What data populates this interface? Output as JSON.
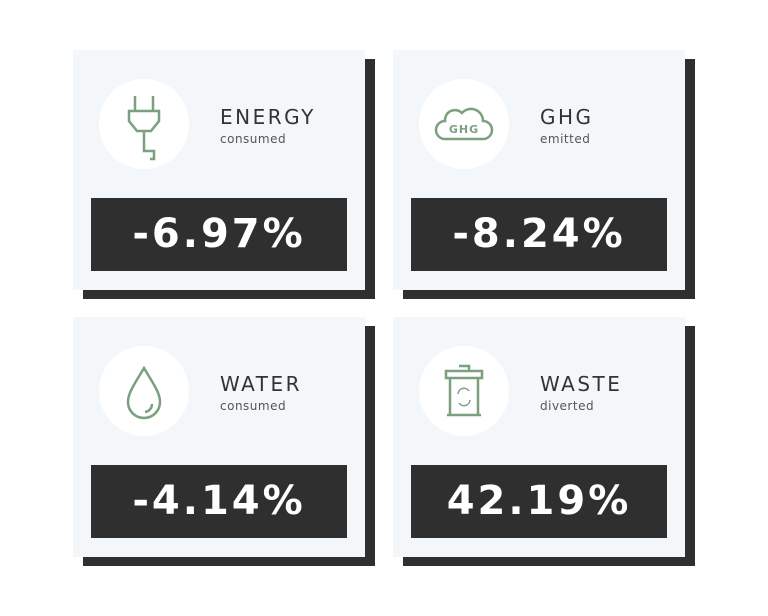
{
  "cards": [
    {
      "title": "ENERGY",
      "subtitle": "consumed",
      "value": "-6.97%"
    },
    {
      "title": "GHG",
      "subtitle": "emitted",
      "value": "-8.24%",
      "icon_label": "GHG"
    },
    {
      "title": "WATER",
      "subtitle": "consumed",
      "value": "-4.14%"
    },
    {
      "title": "WASTE",
      "subtitle": "diverted",
      "value": "42.19%"
    }
  ]
}
